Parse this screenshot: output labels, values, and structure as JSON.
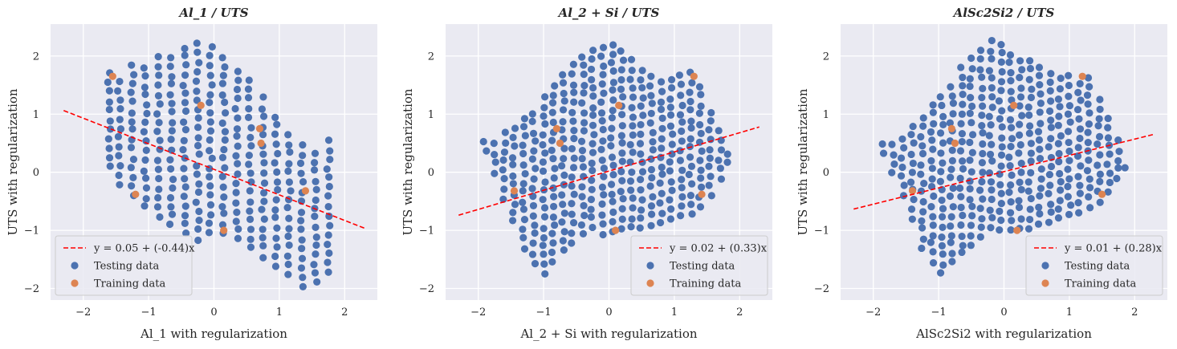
{
  "colors": {
    "panel_bg": "#EAEAF2",
    "grid": "#FFFFFF",
    "testing": "#4C72B0",
    "training": "#DD8452",
    "fit_line": "#FF0000"
  },
  "chart_data": [
    {
      "type": "scatter",
      "title": "Al_1 / UTS",
      "xlabel": "Al_1 with regularization",
      "ylabel": "UTS with regularization",
      "xlim": [
        -2.5,
        2.5
      ],
      "ylim": [
        -2.2,
        2.55
      ],
      "xticks": [
        -2,
        -1,
        0,
        1,
        2
      ],
      "yticks": [
        -2,
        -1,
        0,
        1,
        2
      ],
      "grid": true,
      "legend_position": "lower-left",
      "fit": {
        "label": "y = 0.05 + (-0.44)x",
        "intercept": 0.05,
        "slope": -0.44,
        "x_range": [
          -2.3,
          2.3
        ]
      },
      "testing_label": "Testing data",
      "training_label": "Training data",
      "testing_cluster": {
        "xs": [
          -1.6,
          -1.45,
          -1.25,
          -1.05,
          -0.85,
          -0.65,
          -0.45,
          -0.25,
          -0.05,
          0.15,
          0.35,
          0.55,
          0.75,
          0.95,
          1.15,
          1.35,
          1.55,
          1.75
        ],
        "y_min": [
          0.1,
          -0.2,
          -0.4,
          -0.6,
          -0.75,
          -0.9,
          -1.05,
          -1.15,
          -1.05,
          -1.05,
          -1.15,
          -1.3,
          -1.45,
          -1.6,
          -1.75,
          -1.95,
          -1.9,
          -1.7
        ],
        "y_max": [
          1.8,
          1.7,
          1.85,
          1.95,
          2.0,
          2.05,
          2.15,
          2.25,
          2.3,
          2.1,
          1.85,
          1.6,
          1.35,
          1.05,
          0.75,
          0.45,
          0.45,
          0.55
        ],
        "step": 0.16
      },
      "training_points": [
        [
          -1.55,
          1.65
        ],
        [
          -1.2,
          -0.38
        ],
        [
          -0.2,
          1.15
        ],
        [
          0.15,
          -1.0
        ],
        [
          0.7,
          0.75
        ],
        [
          0.72,
          0.5
        ],
        [
          1.4,
          -0.32
        ]
      ]
    },
    {
      "type": "scatter",
      "title": "Al_2 + Si / UTS",
      "xlabel": "Al_2 + Si with regularization",
      "ylabel": "UTS with regularization",
      "xlim": [
        -2.5,
        2.5
      ],
      "ylim": [
        -2.2,
        2.55
      ],
      "xticks": [
        -2,
        -1,
        0,
        1,
        2
      ],
      "yticks": [
        -2,
        -1,
        0,
        1,
        2
      ],
      "grid": true,
      "legend_position": "lower-right",
      "fit": {
        "label": "y = 0.02 + (0.33)x",
        "intercept": 0.02,
        "slope": 0.33,
        "x_range": [
          -2.3,
          2.3
        ]
      },
      "testing_label": "Testing data",
      "training_label": "Training data",
      "testing_cluster": {
        "xs": [
          -1.9,
          -1.75,
          -1.6,
          -1.45,
          -1.3,
          -1.15,
          -1.0,
          -0.85,
          -0.7,
          -0.55,
          -0.4,
          -0.25,
          -0.1,
          0.05,
          0.2,
          0.35,
          0.5,
          0.65,
          0.8,
          0.95,
          1.1,
          1.25,
          1.4,
          1.55,
          1.7,
          1.8
        ],
        "y_min": [
          0.35,
          0.0,
          -0.45,
          -0.85,
          -1.3,
          -1.55,
          -1.75,
          -1.55,
          -1.35,
          -1.2,
          -1.05,
          -0.95,
          -1.05,
          -1.0,
          -0.95,
          -0.95,
          -0.95,
          -0.9,
          -0.85,
          -0.8,
          -0.75,
          -0.7,
          -0.6,
          -0.4,
          -0.1,
          0.15
        ],
        "y_max": [
          0.55,
          0.6,
          0.7,
          0.85,
          1.0,
          1.15,
          1.35,
          1.55,
          1.75,
          1.95,
          2.05,
          2.2,
          2.3,
          2.2,
          2.1,
          2.0,
          1.9,
          1.8,
          1.7,
          1.7,
          1.65,
          1.8,
          1.55,
          1.15,
          0.75,
          0.35
        ],
        "step": 0.16
      },
      "training_points": [
        [
          -1.45,
          -0.32
        ],
        [
          -0.8,
          0.75
        ],
        [
          -0.75,
          0.5
        ],
        [
          0.1,
          -1.0
        ],
        [
          0.15,
          1.15
        ],
        [
          1.3,
          1.65
        ],
        [
          1.42,
          -0.38
        ]
      ]
    },
    {
      "type": "scatter",
      "title": "AlSc2Si2 / UTS",
      "xlabel": "AlSc2Si2 with regularization",
      "ylabel": "UTS with regularization",
      "xlim": [
        -2.5,
        2.5
      ],
      "ylim": [
        -2.2,
        2.55
      ],
      "xticks": [
        -2,
        -1,
        0,
        1,
        2
      ],
      "yticks": [
        -2,
        -1,
        0,
        1,
        2
      ],
      "grid": true,
      "legend_position": "lower-right",
      "fit": {
        "label": "y = 0.01 + (0.28)x",
        "intercept": 0.01,
        "slope": 0.28,
        "x_range": [
          -2.3,
          2.3
        ]
      },
      "testing_label": "Testing data",
      "training_label": "Training data",
      "testing_cluster": {
        "xs": [
          -1.85,
          -1.7,
          -1.55,
          -1.4,
          -1.25,
          -1.1,
          -0.95,
          -0.8,
          -0.65,
          -0.5,
          -0.35,
          -0.2,
          -0.05,
          0.1,
          0.25,
          0.4,
          0.55,
          0.7,
          0.85,
          1.0,
          1.15,
          1.3,
          1.45,
          1.6,
          1.75,
          1.85
        ],
        "y_min": [
          0.35,
          0.0,
          -0.4,
          -0.8,
          -1.3,
          -1.55,
          -1.75,
          -1.55,
          -1.4,
          -1.25,
          -1.1,
          -0.95,
          -1.0,
          -1.0,
          -0.95,
          -0.95,
          -0.9,
          -0.85,
          -0.8,
          -0.75,
          -0.7,
          -0.6,
          -0.5,
          -0.35,
          -0.1,
          0.1
        ],
        "y_max": [
          0.55,
          0.6,
          0.7,
          0.85,
          1.0,
          1.2,
          1.4,
          1.6,
          1.8,
          2.0,
          2.15,
          2.3,
          2.25,
          2.15,
          2.05,
          1.95,
          1.85,
          1.8,
          1.75,
          1.7,
          1.65,
          1.7,
          1.35,
          1.0,
          0.6,
          0.25
        ],
        "step": 0.16
      },
      "training_points": [
        [
          -1.4,
          -0.32
        ],
        [
          -0.8,
          0.75
        ],
        [
          -0.75,
          0.5
        ],
        [
          0.2,
          -1.0
        ],
        [
          0.15,
          1.15
        ],
        [
          1.2,
          1.65
        ],
        [
          1.5,
          -0.38
        ]
      ]
    }
  ]
}
